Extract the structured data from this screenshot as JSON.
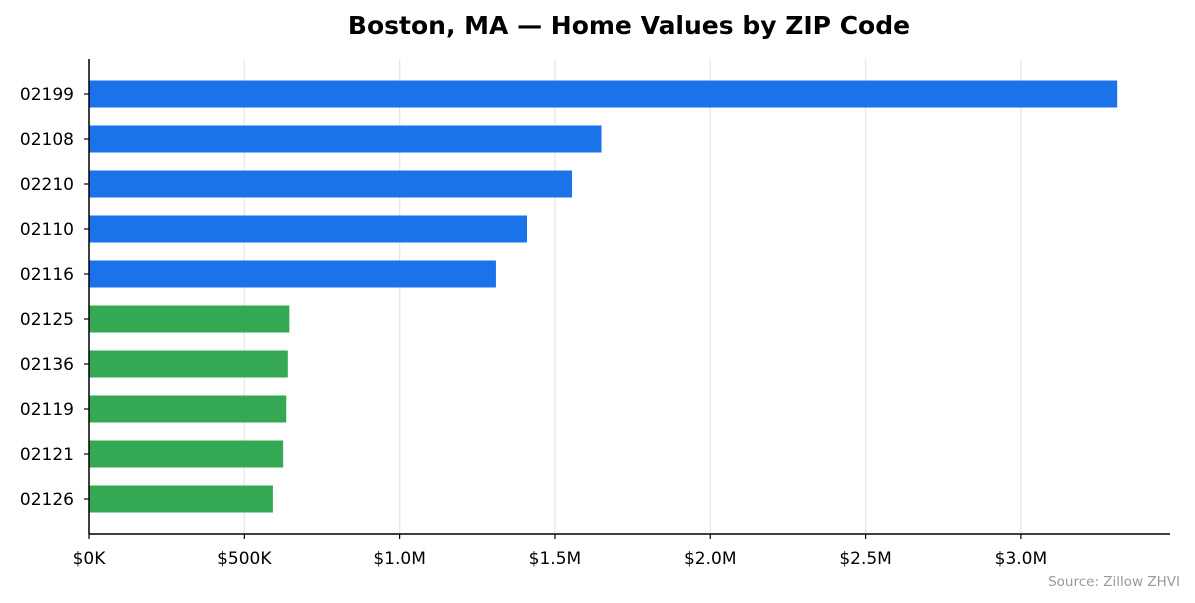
{
  "chart_data": {
    "type": "bar",
    "orientation": "horizontal",
    "title": "Boston, MA — Home Values by ZIP Code",
    "xlabel": "",
    "ylabel": "",
    "categories": [
      "02199",
      "02108",
      "02210",
      "02110",
      "02116",
      "02125",
      "02136",
      "02119",
      "02121",
      "02126"
    ],
    "values": [
      3310000,
      1650000,
      1555000,
      1410000,
      1310000,
      645000,
      640000,
      635000,
      625000,
      592000
    ],
    "bar_colors": [
      "#1a73e8",
      "#1a73e8",
      "#1a73e8",
      "#1a73e8",
      "#1a73e8",
      "#34a853",
      "#34a853",
      "#34a853",
      "#34a853",
      "#34a853"
    ],
    "xlim": [
      0,
      3480000
    ],
    "x_ticks": [
      0,
      500000,
      1000000,
      1500000,
      2000000,
      2500000,
      3000000
    ],
    "x_tick_labels": [
      "$0K",
      "$500K",
      "$1.0M",
      "$1.5M",
      "$2.0M",
      "$2.5M",
      "$3.0M"
    ],
    "grid": "vertical",
    "legend": "none",
    "source_note": "Source: Zillow ZHVI"
  }
}
